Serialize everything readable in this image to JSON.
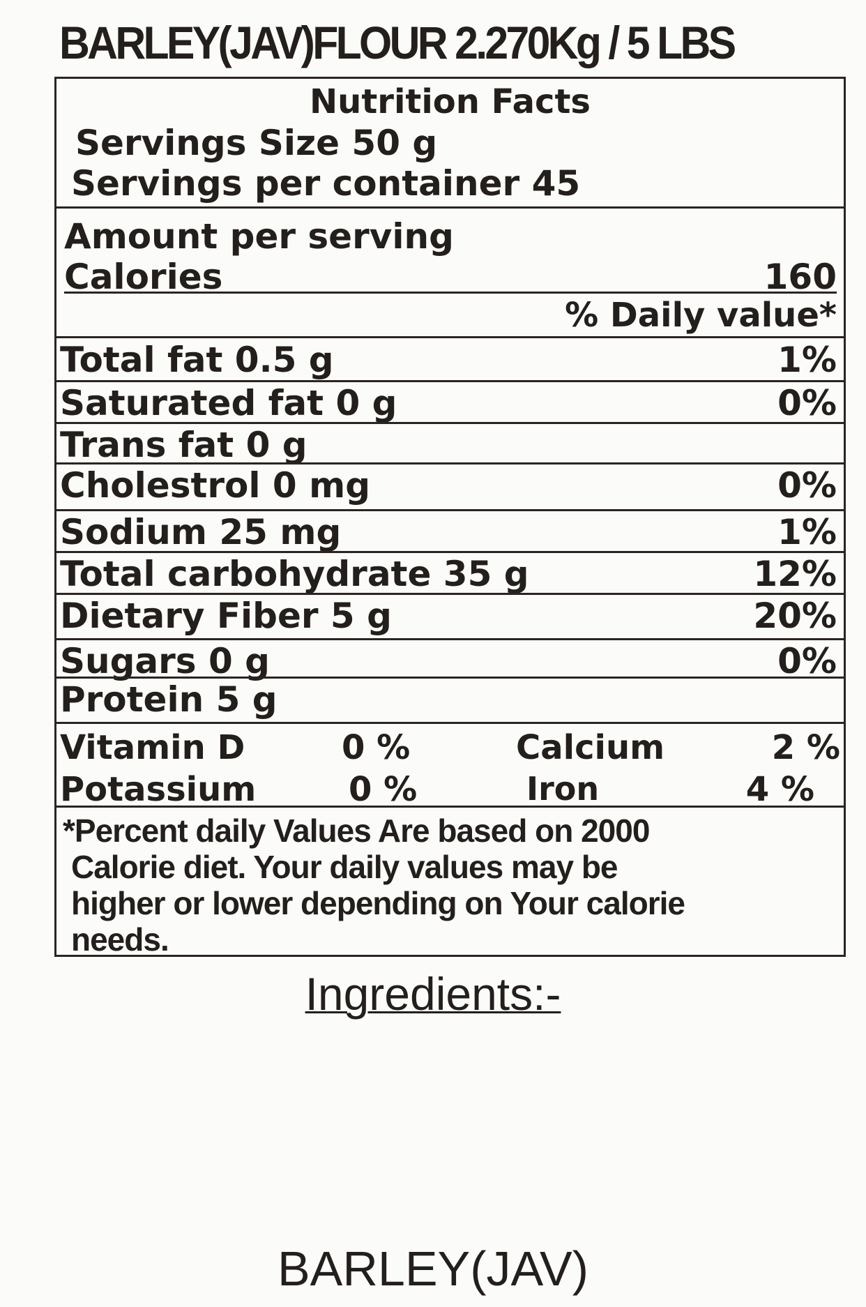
{
  "title": "BARLEY(JAV)FLOUR 2.270Kg / 5 LBS",
  "nutrition_facts": {
    "heading": "Nutrition Facts",
    "serving_size": "Servings Size 50 g",
    "servings_per_container": "Servings per container 45",
    "amount_per_serving": "Amount per serving",
    "calories": {
      "label": "Calories",
      "value": "160"
    },
    "daily_value_header": "% Daily value*",
    "nutrients": [
      {
        "name": "Total fat 0.5 g",
        "dv": "1%"
      },
      {
        "name": "Saturated fat 0 g",
        "dv": "0%"
      },
      {
        "name": "Trans fat 0 g"
      },
      {
        "name": "Cholestrol 0 mg",
        "dv": "0%"
      },
      {
        "name": "Sodium 25 mg",
        "dv": "1%"
      },
      {
        "name": "Total carbohydrate 35 g",
        "dv": "12%"
      },
      {
        "name": "Dietary Fiber 5 g",
        "dv": "20%"
      },
      {
        "name": "Sugars 0 g",
        "dv": "0%"
      },
      {
        "name": "Protein 5 g"
      }
    ],
    "vitamins": [
      {
        "name": "Vitamin D",
        "amount": "0 %"
      },
      {
        "name": "Calcium",
        "amount": "2 %"
      },
      {
        "name": "Potassium",
        "amount": "0 %"
      },
      {
        "name": "Iron",
        "amount": "4 %"
      }
    ],
    "footnote": [
      "*Percent daily Values Are based on 2000",
      "Calorie diet. Your daily values may be",
      "higher or lower depending on Your calorie",
      "needs."
    ]
  },
  "ingredients": {
    "heading": "Ingredients:-",
    "text": "BARLEY(JAV)"
  }
}
